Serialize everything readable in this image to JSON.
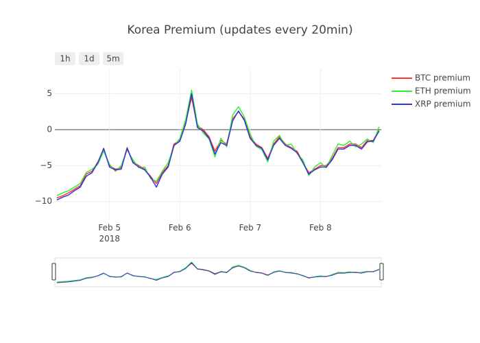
{
  "chart_data": {
    "type": "line",
    "title": "Korea Premium (updates every 20min)",
    "range_buttons": [
      "1h",
      "1d",
      "5m"
    ],
    "x": [
      "2018-02-04T06:00",
      "2018-02-04T08:00",
      "2018-02-04T10:00",
      "2018-02-04T12:00",
      "2018-02-04T14:00",
      "2018-02-04T16:00",
      "2018-02-04T18:00",
      "2018-02-04T20:00",
      "2018-02-04T22:00",
      "2018-02-05T00:00",
      "2018-02-05T02:00",
      "2018-02-05T04:00",
      "2018-02-05T06:00",
      "2018-02-05T08:00",
      "2018-02-05T10:00",
      "2018-02-05T12:00",
      "2018-02-05T14:00",
      "2018-02-05T16:00",
      "2018-02-05T18:00",
      "2018-02-05T20:00",
      "2018-02-05T22:00",
      "2018-02-06T00:00",
      "2018-02-06T02:00",
      "2018-02-06T04:00",
      "2018-02-06T06:00",
      "2018-02-06T08:00",
      "2018-02-06T10:00",
      "2018-02-06T12:00",
      "2018-02-06T14:00",
      "2018-02-06T16:00",
      "2018-02-06T18:00",
      "2018-02-06T20:00",
      "2018-02-06T22:00",
      "2018-02-07T00:00",
      "2018-02-07T02:00",
      "2018-02-07T04:00",
      "2018-02-07T06:00",
      "2018-02-07T08:00",
      "2018-02-07T10:00",
      "2018-02-07T12:00",
      "2018-02-07T14:00",
      "2018-02-07T16:00",
      "2018-02-07T18:00",
      "2018-02-07T20:00",
      "2018-02-07T22:00",
      "2018-02-08T00:00",
      "2018-02-08T02:00",
      "2018-02-08T04:00",
      "2018-02-08T06:00",
      "2018-02-08T08:00",
      "2018-02-08T10:00",
      "2018-02-08T12:00",
      "2018-02-08T14:00",
      "2018-02-08T16:00",
      "2018-02-08T18:00",
      "2018-02-08T20:00"
    ],
    "series": [
      {
        "name": "BTC premium",
        "color": "#ff3333",
        "values": [
          -9.5,
          -9.2,
          -8.8,
          -8.3,
          -7.8,
          -6.2,
          -5.8,
          -4.5,
          -2.8,
          -5.0,
          -5.5,
          -5.3,
          -2.5,
          -4.5,
          -5.0,
          -5.5,
          -6.5,
          -7.5,
          -6.0,
          -5.0,
          -2.0,
          -1.5,
          1.0,
          4.5,
          0.5,
          0.0,
          -1.0,
          -3.0,
          -1.5,
          -2.0,
          1.5,
          2.5,
          1.5,
          -1.0,
          -2.0,
          -2.5,
          -4.0,
          -2.0,
          -1.0,
          -2.0,
          -2.5,
          -3.0,
          -4.5,
          -6.0,
          -5.5,
          -5.0,
          -5.0,
          -4.0,
          -2.5,
          -2.5,
          -2.0,
          -2.0,
          -2.5,
          -1.5,
          -1.5,
          0.0
        ]
      },
      {
        "name": "ETH premium",
        "color": "#33ee33",
        "values": [
          -9.2,
          -8.8,
          -8.5,
          -8.0,
          -7.5,
          -6.0,
          -5.5,
          -4.8,
          -3.0,
          -4.8,
          -5.8,
          -5.0,
          -2.8,
          -4.2,
          -5.3,
          -5.2,
          -6.8,
          -7.2,
          -5.8,
          -4.6,
          -2.3,
          -1.2,
          1.4,
          5.5,
          0.8,
          -0.5,
          -1.3,
          -3.8,
          -1.2,
          -2.4,
          2.0,
          3.2,
          1.8,
          -0.6,
          -2.3,
          -2.8,
          -4.5,
          -1.6,
          -0.8,
          -2.2,
          -2.0,
          -3.3,
          -4.2,
          -6.4,
          -5.2,
          -4.6,
          -5.3,
          -3.6,
          -2.0,
          -2.2,
          -1.6,
          -2.4,
          -2.0,
          -1.3,
          -1.8,
          0.4
        ]
      },
      {
        "name": "XRP premium",
        "color": "#3333dd",
        "values": [
          -9.8,
          -9.4,
          -9.1,
          -8.5,
          -8.0,
          -6.5,
          -6.0,
          -4.6,
          -2.6,
          -5.2,
          -5.6,
          -5.5,
          -2.6,
          -4.6,
          -5.2,
          -5.6,
          -6.6,
          -8.0,
          -6.2,
          -5.2,
          -2.2,
          -1.6,
          0.8,
          5.0,
          0.3,
          -0.2,
          -1.2,
          -3.4,
          -1.8,
          -2.2,
          1.2,
          2.6,
          1.3,
          -1.2,
          -2.2,
          -2.6,
          -4.2,
          -2.2,
          -1.2,
          -2.2,
          -2.6,
          -3.2,
          -4.6,
          -6.2,
          -5.6,
          -5.2,
          -5.2,
          -4.2,
          -2.7,
          -2.7,
          -2.2,
          -2.2,
          -2.7,
          -1.7,
          -1.6,
          -0.2
        ]
      }
    ],
    "xlim": [
      "2018-02-04T05:20",
      "2018-02-08T20:45"
    ],
    "xticks": [
      {
        "value": "2018-02-05T00:00",
        "label": "Feb 5\n2018"
      },
      {
        "value": "2018-02-06T00:00",
        "label": "Feb 6"
      },
      {
        "value": "2018-02-07T00:00",
        "label": "Feb 7"
      },
      {
        "value": "2018-02-08T00:00",
        "label": "Feb 8"
      }
    ],
    "ylim": [
      -12.7,
      8.5
    ],
    "yticks": [
      {
        "value": -10,
        "label": "−10"
      },
      {
        "value": -5,
        "label": "−5"
      },
      0,
      5
    ],
    "grid": true,
    "legend": "right",
    "range_slider": true
  }
}
